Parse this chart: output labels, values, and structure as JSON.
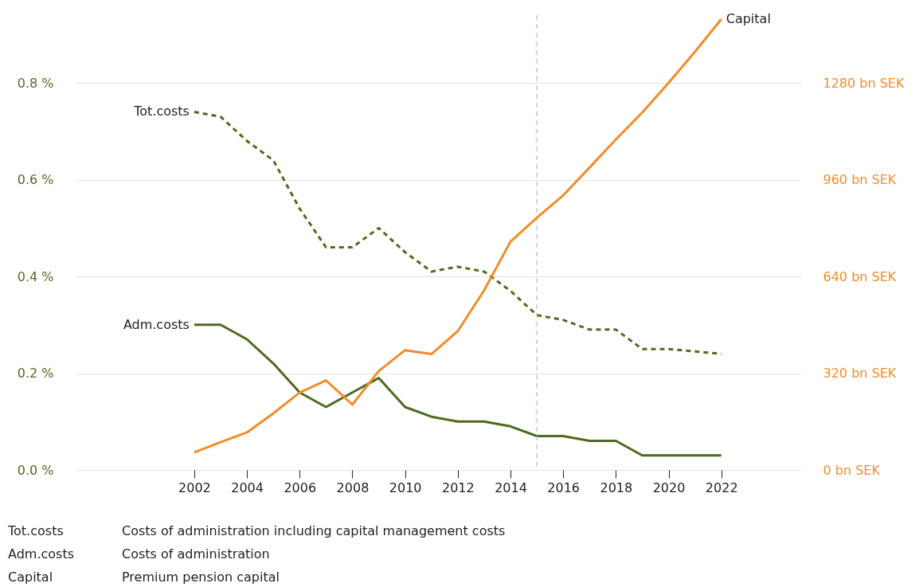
{
  "chart_data": {
    "type": "line",
    "x": [
      2002,
      2003,
      2004,
      2005,
      2006,
      2007,
      2008,
      2009,
      2010,
      2011,
      2012,
      2013,
      2014,
      2015,
      2016,
      2017,
      2018,
      2019,
      2020,
      2021,
      2022
    ],
    "series": [
      {
        "name": "Tot.costs",
        "color": "#4e6b1e",
        "line_style": "dashed",
        "axis": "y",
        "values": [
          0.74,
          0.73,
          0.68,
          0.64,
          0.54,
          0.46,
          0.46,
          0.5,
          0.45,
          0.41,
          0.42,
          0.41,
          0.37,
          0.32,
          0.31,
          0.29,
          0.29,
          0.25,
          0.25,
          0.245,
          0.24
        ]
      },
      {
        "name": "Adm.costs",
        "color": "#4e6b1e",
        "line_style": "solid",
        "axis": "y",
        "values": [
          0.3,
          0.3,
          0.27,
          0.22,
          0.16,
          0.13,
          0.16,
          0.19,
          0.13,
          0.11,
          0.1,
          0.1,
          0.09,
          0.07,
          0.07,
          0.06,
          0.06,
          0.03,
          0.03,
          0.03,
          0.03
        ]
      },
      {
        "name": "Capital",
        "color": "#f28c28",
        "line_style": "solid",
        "axis": "y2",
        "values": [
          58,
          92,
          124,
          187,
          256,
          296,
          216,
          327,
          396,
          383,
          459,
          594,
          755,
          834,
          908,
          1000,
          1093,
          1182,
          1280,
          1383,
          1491
        ]
      }
    ],
    "xlim": [
      1997.5,
      2025
    ],
    "xticks": [
      2002,
      2004,
      2006,
      2008,
      2010,
      2012,
      2014,
      2016,
      2018,
      2020,
      2022
    ],
    "ylim": [
      0,
      0.94
    ],
    "yticks": [
      {
        "value": 0,
        "label": "0.0 %"
      },
      {
        "value": 0.2,
        "label": "0.2 %"
      },
      {
        "value": 0.4,
        "label": "0.4 %"
      },
      {
        "value": 0.6,
        "label": "0.6 %"
      },
      {
        "value": 0.8,
        "label": "0.8 %"
      }
    ],
    "y2lim": [
      0,
      1504
    ],
    "y2ticks": [
      {
        "value": 0,
        "label": "0 bn SEK"
      },
      {
        "value": 320,
        "label": "320 bn SEK"
      },
      {
        "value": 640,
        "label": "640 bn SEK"
      },
      {
        "value": 960,
        "label": "960 bn SEK"
      },
      {
        "value": 1280,
        "label": "1280 bn SEK"
      }
    ],
    "grid": "y",
    "ref_lines": [
      {
        "axis": "x",
        "value": 2015,
        "color": "#bbbbbb",
        "line_style": "dashed"
      }
    ],
    "annotations": [
      "Tot.costs\tCosts of administration including capital management costs",
      "Adm.costs\tCosts of administration",
      "Capital\tPremium pension capital"
    ]
  }
}
